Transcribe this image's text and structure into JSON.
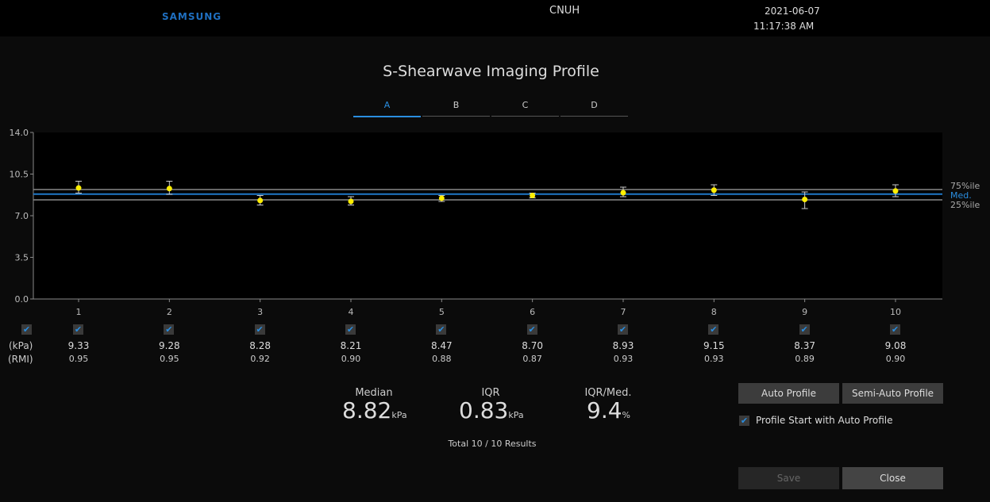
{
  "header": {
    "logo": "SAMSUNG",
    "site": "CNUH",
    "date": "2021-06-07",
    "time": "11:17:38 AM"
  },
  "title": "S-Shearwave Imaging Profile",
  "tabs": [
    {
      "label": "A",
      "active": true
    },
    {
      "label": "B"
    },
    {
      "label": "C"
    },
    {
      "label": "D"
    }
  ],
  "chart_data": {
    "type": "scatter",
    "x": [
      1,
      2,
      3,
      4,
      5,
      6,
      7,
      8,
      9,
      10
    ],
    "values": [
      9.33,
      9.28,
      8.28,
      8.21,
      8.47,
      8.7,
      8.93,
      9.15,
      8.37,
      9.08
    ],
    "error_low": [
      8.9,
      8.8,
      7.9,
      7.9,
      8.2,
      8.5,
      8.6,
      8.7,
      7.6,
      8.6
    ],
    "error_high": [
      9.9,
      9.9,
      8.7,
      8.6,
      8.7,
      8.9,
      9.4,
      9.6,
      9.0,
      9.6
    ],
    "ylim": [
      0,
      14
    ],
    "yticks": [
      "0.0",
      "3.5",
      "7.0",
      "10.5",
      "14.0"
    ],
    "reference_lines": [
      {
        "label": "75%ile",
        "value": 9.2,
        "color": "#888888"
      },
      {
        "label": "Med.",
        "value": 8.82,
        "color": "#1f78c8"
      },
      {
        "label": "25%ile",
        "value": 8.33,
        "color": "#888888"
      }
    ],
    "point_color": "#ffee00"
  },
  "rows": {
    "kpa_label": "(kPa)",
    "rmi_label": "(RMI)",
    "kpa": [
      "9.33",
      "9.28",
      "8.28",
      "8.21",
      "8.47",
      "8.70",
      "8.93",
      "9.15",
      "8.37",
      "9.08"
    ],
    "rmi": [
      "0.95",
      "0.95",
      "0.92",
      "0.90",
      "0.88",
      "0.87",
      "0.93",
      "0.93",
      "0.89",
      "0.90"
    ],
    "checked": [
      true,
      true,
      true,
      true,
      true,
      true,
      true,
      true,
      true,
      true
    ]
  },
  "stats": {
    "median_label": "Median",
    "median": "8.82",
    "median_unit": "kPa",
    "iqr_label": "IQR",
    "iqr": "0.83",
    "iqr_unit": "kPa",
    "ratio_label": "IQR/Med.",
    "ratio": "9.4",
    "ratio_unit": "%",
    "total": "Total 10 / 10 Results"
  },
  "buttons": {
    "auto": "Auto Profile",
    "semi": "Semi-Auto Profile",
    "start_auto": "Profile Start with Auto Profile",
    "save": "Save",
    "close": "Close"
  }
}
